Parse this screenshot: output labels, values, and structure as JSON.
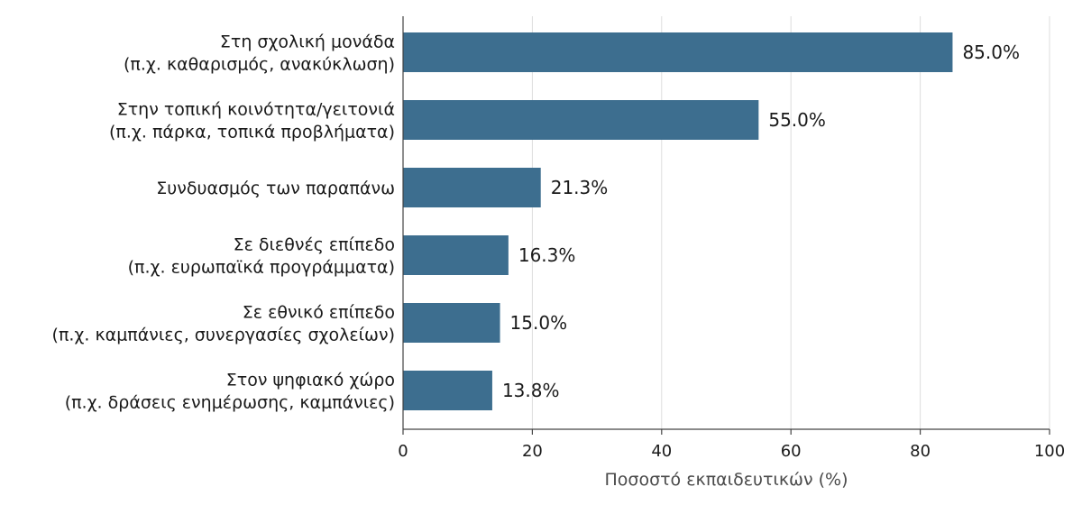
{
  "chart_data": {
    "type": "bar",
    "orientation": "horizontal",
    "categories": [
      [
        "Στη σχολική μονάδα",
        "(π.χ. καθαρισμός, ανακύκλωση)"
      ],
      [
        "Στην τοπική κοινότητα/γειτονιά",
        "(π.χ. πάρκα, τοπικά προβλήματα)"
      ],
      [
        "Συνδυασμός των παραπάνω"
      ],
      [
        "Σε διεθνές επίπεδο",
        "(π.χ. ευρωπαϊκά προγράμματα)"
      ],
      [
        "Σε εθνικό επίπεδο",
        "(π.χ. καμπάνιες, συνεργασίες σχολείων)"
      ],
      [
        "Στον ψηφιακό χώρο",
        "(π.χ. δράσεις ενημέρωσης, καμπάνιες)"
      ]
    ],
    "values": [
      85.0,
      55.0,
      21.3,
      16.3,
      15.0,
      13.8
    ],
    "value_labels": [
      "85.0%",
      "55.0%",
      "21.3%",
      "16.3%",
      "15.0%",
      "13.8%"
    ],
    "xlabel": "Ποσοστό εκπαιδευτικών (%)",
    "ylabel": "",
    "title": "",
    "xlim": [
      0,
      100
    ],
    "xticks": [
      0,
      20,
      40,
      60,
      80,
      100
    ],
    "xtick_labels": [
      "0",
      "20",
      "40",
      "60",
      "80",
      "100"
    ],
    "grid": "vertical",
    "legend": "none",
    "colors": {
      "bar": "#3d6e8f"
    }
  }
}
